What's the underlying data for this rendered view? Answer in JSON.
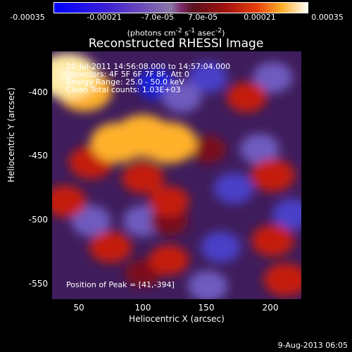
{
  "colorbar": {
    "ticks": [
      "-0.00035",
      "-0.00021",
      "-7.0e-05",
      "7.0e-05",
      "0.00021",
      "0.00035"
    ],
    "unit_html": "(photons cm<sup>-2</sup> s<sup>-1</sup> asec<sup>-2</sup>)",
    "unit_text": "(photons cm-2 s-1 asec-2)"
  },
  "title": "Reconstructed RHESSI Image",
  "annotations": {
    "line1": "20-Jul-2011 14:56:08.000 to 14:57:04.000",
    "line2": "Detectors: 4F 5F 6F 7F 8F, Att 0",
    "line3": "Energy Range: 25.0 - 50.0 keV",
    "line4": "Clean     Total counts: 1.03E+03",
    "peak": "Position of Peak = [41,-394]"
  },
  "footer": "9-Aug-2013 06:05",
  "colors": {
    "background": "#000000",
    "text": "#ffffff",
    "negative": "#0000ff",
    "positive": "#ffffff"
  },
  "chart_data": {
    "type": "heatmap",
    "title": "Reconstructed RHESSI Image",
    "xlabel": "Heliocentric X (arcsec)",
    "ylabel": "Heliocentric Y (arcsec)",
    "xlim": [
      30,
      222
    ],
    "ylim": [
      -565,
      -375
    ],
    "x_ticks": [
      50,
      100,
      150,
      200
    ],
    "y_ticks": [
      -400,
      -450,
      -500,
      -550
    ],
    "colorbar_range": [
      -0.00035,
      0.00035
    ],
    "peak_position": [
      41,
      -394
    ],
    "hot_regions": [
      {
        "x": 42,
        "y": -394,
        "level": 1.0
      },
      {
        "x": 55,
        "y": -405,
        "level": 0.85
      },
      {
        "x": 100,
        "y": -440,
        "level": 0.9
      },
      {
        "x": 80,
        "y": -445,
        "level": 0.8
      },
      {
        "x": 120,
        "y": -445,
        "level": 0.85
      },
      {
        "x": 60,
        "y": -460,
        "level": 0.55
      },
      {
        "x": 100,
        "y": -472,
        "level": 0.5
      },
      {
        "x": 120,
        "y": -490,
        "level": 0.45
      },
      {
        "x": 40,
        "y": -490,
        "level": 0.5
      },
      {
        "x": 120,
        "y": -505,
        "level": 0.4
      },
      {
        "x": 200,
        "y": -470,
        "level": 0.55
      },
      {
        "x": 180,
        "y": -410,
        "level": 0.45
      },
      {
        "x": 200,
        "y": -520,
        "level": 0.5
      },
      {
        "x": 210,
        "y": -550,
        "level": 0.55
      },
      {
        "x": 75,
        "y": -525,
        "level": 0.5
      },
      {
        "x": 120,
        "y": -535,
        "level": 0.45
      },
      {
        "x": 150,
        "y": -450,
        "level": 0.35
      },
      {
        "x": 100,
        "y": -545,
        "level": 0.35
      }
    ],
    "cold_regions": [
      {
        "x": 110,
        "y": -400,
        "level": -0.55
      },
      {
        "x": 150,
        "y": -395,
        "level": -0.45
      },
      {
        "x": 200,
        "y": -395,
        "level": -0.4
      },
      {
        "x": 130,
        "y": -410,
        "level": -0.4
      },
      {
        "x": 170,
        "y": -480,
        "level": -0.45
      },
      {
        "x": 60,
        "y": -505,
        "level": -0.4
      },
      {
        "x": 160,
        "y": -525,
        "level": -0.45
      },
      {
        "x": 215,
        "y": -500,
        "level": -0.5
      },
      {
        "x": 100,
        "y": -505,
        "level": -0.35
      },
      {
        "x": 150,
        "y": -555,
        "level": -0.35
      },
      {
        "x": 190,
        "y": -450,
        "level": -0.35
      }
    ]
  }
}
